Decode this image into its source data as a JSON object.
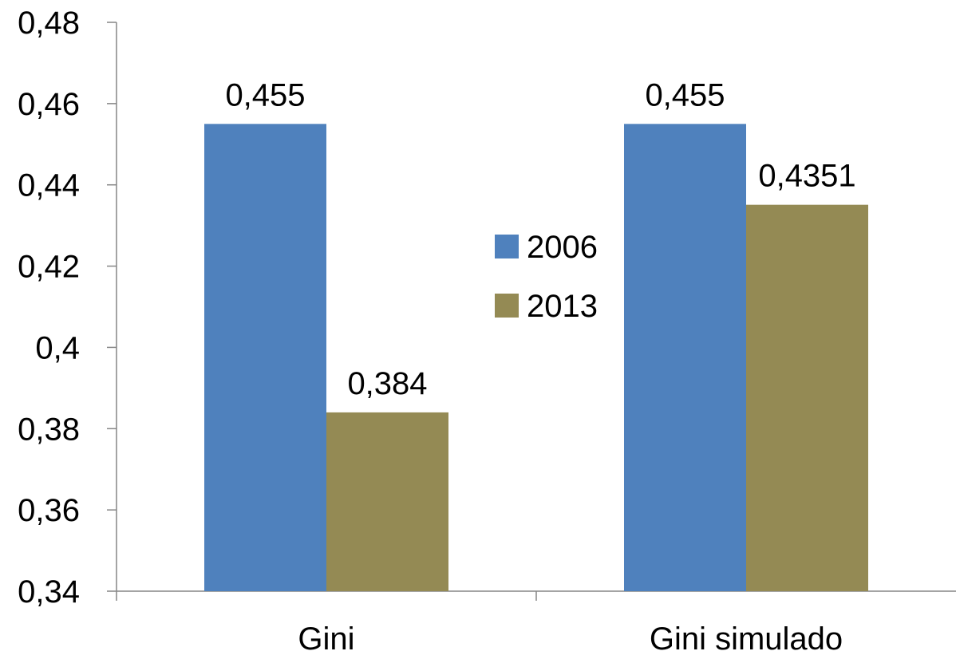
{
  "chart_data": {
    "type": "bar",
    "title": "",
    "xlabel": "",
    "ylabel": "",
    "categories": [
      "Gini",
      "Gini simulado"
    ],
    "series": [
      {
        "name": "2006",
        "values": [
          0.455,
          0.455
        ],
        "labels": [
          "0,455",
          "0,455"
        ],
        "color": "#4f81bd"
      },
      {
        "name": "2013",
        "values": [
          0.384,
          0.4351
        ],
        "labels": [
          "0,384",
          "0,4351"
        ],
        "color": "#948a54"
      }
    ],
    "ylim": [
      0.34,
      0.48
    ],
    "yticks": [
      0.34,
      0.36,
      0.38,
      0.4,
      0.42,
      0.44,
      0.46,
      0.48
    ],
    "ytick_labels": [
      "0,34",
      "0,36",
      "0,38",
      "0,4",
      "0,42",
      "0,44",
      "0,46",
      "0,48"
    ],
    "grid": false,
    "legend_position": "center",
    "axis_color": "#868686"
  }
}
